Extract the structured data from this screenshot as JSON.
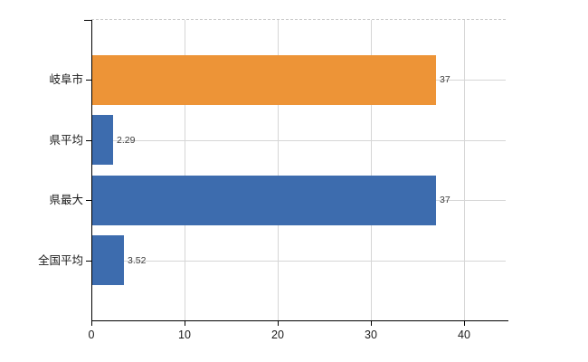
{
  "chart_data": {
    "type": "bar",
    "orientation": "horizontal",
    "title": "",
    "categories": [
      "岐阜市",
      "県平均",
      "県最大",
      "全国平均"
    ],
    "values": [
      37,
      2.29,
      37,
      3.52
    ],
    "value_labels": [
      "37",
      "2.29",
      "37",
      "3.52"
    ],
    "bar_colors": [
      "#ed9437",
      "#3d6cae",
      "#3d6cae",
      "#3d6cae"
    ],
    "x_ticks": [
      0,
      10,
      20,
      30,
      40
    ],
    "xlim": [
      0,
      44.5
    ],
    "grid": true,
    "legend_position": "none",
    "xlabel": "",
    "ylabel": ""
  },
  "colors": {
    "background": "#ffffff",
    "grid": "#d6d6d6",
    "axis": "#000000",
    "tick_label": "#1a1a1a",
    "value_label": "#3d3d3d",
    "bar_orange": "#ed9437",
    "bar_blue": "#3d6cae"
  }
}
